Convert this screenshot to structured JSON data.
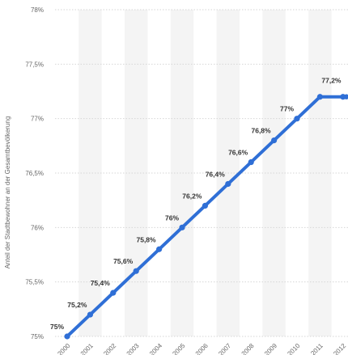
{
  "chart_data": {
    "type": "line",
    "ylabel": "Anteil der Stadtbewohner an der Gesamtbevölkerung",
    "categories": [
      "2000",
      "2001",
      "2002",
      "2003",
      "2004",
      "2005",
      "2006",
      "2007",
      "2008",
      "2009",
      "2010",
      "2011",
      "2012"
    ],
    "series": [
      {
        "values": [
          75,
          75.2,
          75.4,
          75.6,
          75.8,
          76,
          76.2,
          76.4,
          76.6,
          76.8,
          77,
          77.2,
          77.2
        ],
        "labels": [
          "75%",
          "75,2%",
          "75,4%",
          "75,6%",
          "75,8%",
          "76%",
          "76,2%",
          "76,4%",
          "76,6%",
          "76,8%",
          "77%",
          "77,2%",
          ""
        ],
        "color": "#2f6fd6"
      }
    ],
    "yticks": [
      75,
      75.5,
      76,
      76.5,
      77,
      77.5,
      78
    ],
    "ytick_labels": [
      "75%",
      "75,5%",
      "76%",
      "76,5%",
      "77%",
      "77,5%",
      "78%"
    ],
    "ylim": [
      75,
      78
    ],
    "grid": true,
    "legend": "none"
  }
}
